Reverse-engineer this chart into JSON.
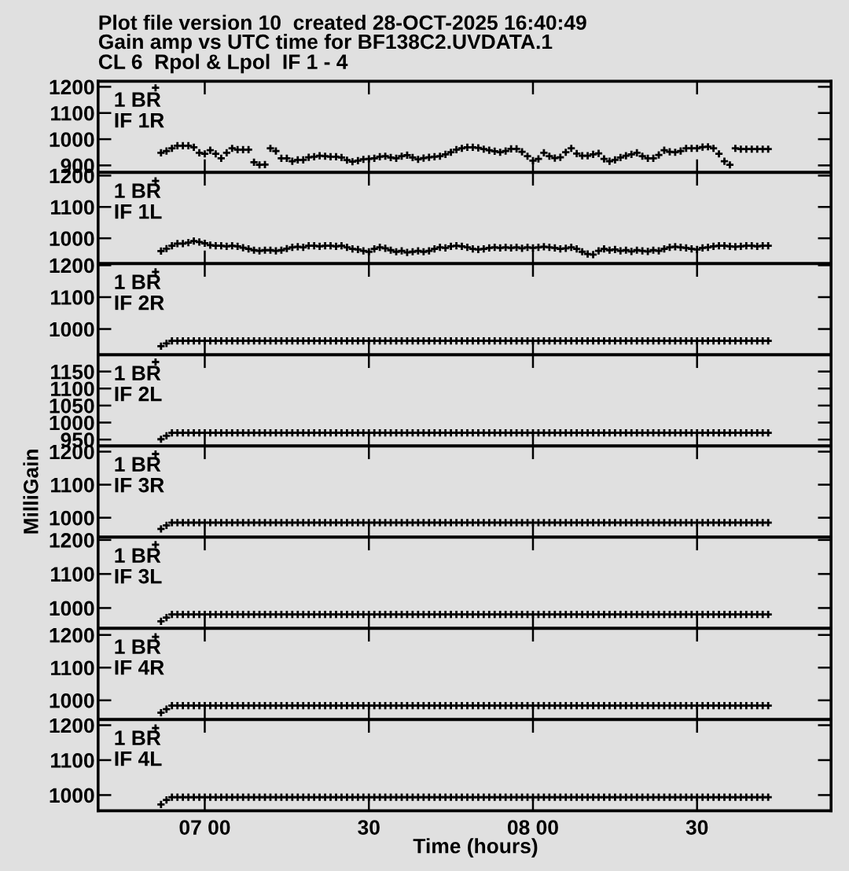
{
  "chart_data": [
    {
      "type": "scatter",
      "title": "Plot file version 10  created 28-OCT-2025 16:40:49",
      "subtitle": "Gain amp vs UTC time for BF138C2.UVDATA.1\nCL 6  Rpol & Lpol  IF 1 - 4",
      "color": "#000000",
      "marker": "cross",
      "tick_labels": "y",
      "annotations": [
        "1 BR",
        "IF 1R"
      ],
      "ylim": [
        873,
        1221
      ],
      "yticks": [
        900,
        1000,
        1100,
        1200
      ],
      "categories": [
        null,
        null,
        null,
        null,
        null,
        null,
        null,
        null,
        null,
        null,
        null,
        null,
        null,
        null,
        null,
        null,
        null,
        null,
        null,
        null,
        null,
        null,
        null,
        null,
        null,
        null,
        null,
        null,
        null,
        null,
        null,
        null,
        null,
        null,
        null,
        null,
        null,
        null,
        null,
        null,
        null,
        null,
        null,
        null,
        null,
        null,
        null,
        null,
        null,
        null,
        null,
        null,
        null,
        null,
        null,
        null,
        null,
        null,
        null,
        null,
        null,
        null,
        null,
        null,
        null,
        null,
        null,
        null,
        null,
        null,
        null,
        null,
        null,
        null,
        null,
        null,
        null,
        null,
        null,
        null,
        null,
        null,
        null,
        null,
        null,
        null,
        null,
        null,
        null,
        null,
        null,
        null,
        null,
        null,
        null,
        null,
        null,
        null,
        null,
        null,
        null,
        null,
        null,
        null,
        null,
        null,
        null,
        null,
        null,
        null,
        null,
        null,
        null,
        null,
        null,
        null,
        null,
        null,
        null,
        null,
        null,
        null,
        null,
        null,
        null,
        null,
        null,
        null,
        null,
        null,
        null,
        null,
        null,
        null
      ],
      "values": [
        null,
        null,
        null,
        null,
        null,
        null,
        null,
        null,
        null,
        null,
        1196,
        948,
        955,
        965,
        975,
        975,
        975,
        969,
        948,
        944,
        958,
        944,
        927,
        948,
        965,
        960,
        960,
        960,
        912,
        902,
        903,
        965,
        955,
        927,
        927,
        916,
        921,
        921,
        931,
        933,
        937,
        935,
        933,
        933,
        930,
        920,
        914,
        918,
        923,
        925,
        927,
        933,
        935,
        930,
        927,
        935,
        939,
        930,
        923,
        928,
        931,
        933,
        935,
        942,
        950,
        960,
        965,
        969,
        969,
        967,
        962,
        958,
        954,
        950,
        955,
        963,
        963,
        952,
        935,
        918,
        925,
        948,
        935,
        928,
        931,
        950,
        965,
        945,
        937,
        937,
        942,
        946,
        925,
        916,
        921,
        930,
        937,
        942,
        948,
        935,
        927,
        927,
        940,
        958,
        952,
        950,
        955,
        965,
        965,
        965,
        970,
        971,
        965,
        944,
        916,
        902,
        965,
        962,
        962,
        962,
        962,
        962,
        962,
        null,
        null,
        null,
        null,
        null,
        null,
        null,
        null,
        null,
        null,
        null
      ]
    },
    {
      "type": "scatter",
      "color": "#000000",
      "marker": "cross",
      "tick_labels": "y",
      "annotations": [
        "1 BR",
        "IF 1L"
      ],
      "ylim": [
        919,
        1210
      ],
      "yticks": [
        1000,
        1100,
        1200
      ],
      "categories": [
        null,
        null,
        null,
        null,
        null,
        null,
        null,
        null,
        null,
        null,
        null,
        null,
        null,
        null,
        null,
        null,
        null,
        null,
        null,
        null,
        null,
        null,
        null,
        null,
        null,
        null,
        null,
        null,
        null,
        null,
        null,
        null,
        null,
        null,
        null,
        null,
        null,
        null,
        null,
        null,
        null,
        null,
        null,
        null,
        null,
        null,
        null,
        null,
        null,
        null,
        null,
        null,
        null,
        null,
        null,
        null,
        null,
        null,
        null,
        null,
        null,
        null,
        null,
        null,
        null,
        null,
        null,
        null,
        null,
        null,
        null,
        null,
        null,
        null,
        null,
        null,
        null,
        null,
        null,
        null,
        null,
        null,
        null,
        null,
        null,
        null,
        null,
        null,
        null,
        null,
        null,
        null,
        null,
        null,
        null,
        null,
        null,
        null,
        null,
        null,
        null,
        null,
        null,
        null,
        null,
        null,
        null,
        null,
        null,
        null,
        null,
        null,
        null,
        null,
        null,
        null,
        null,
        null,
        null,
        null,
        null,
        null,
        null,
        null,
        null,
        null,
        null,
        null,
        null,
        null,
        null,
        null,
        null,
        null
      ],
      "values": [
        null,
        null,
        null,
        null,
        null,
        null,
        null,
        null,
        null,
        null,
        1183,
        959,
        967,
        976,
        983,
        983,
        986,
        991,
        988,
        984,
        978,
        976,
        976,
        974,
        976,
        974,
        970,
        966,
        962,
        960,
        962,
        962,
        960,
        962,
        967,
        971,
        973,
        971,
        976,
        976,
        974,
        976,
        976,
        974,
        976,
        971,
        966,
        964,
        960,
        957,
        966,
        971,
        968,
        962,
        957,
        960,
        955,
        957,
        960,
        957,
        960,
        966,
        971,
        969,
        974,
        976,
        974,
        971,
        966,
        964,
        966,
        969,
        971,
        969,
        971,
        969,
        971,
        968,
        971,
        969,
        971,
        973,
        971,
        969,
        966,
        968,
        971,
        966,
        957,
        950,
        948,
        960,
        966,
        962,
        964,
        960,
        962,
        958,
        962,
        960,
        958,
        962,
        960,
        966,
        971,
        973,
        971,
        969,
        966,
        964,
        969,
        971,
        974,
        976,
        976,
        974,
        973,
        974,
        976,
        976,
        974,
        976,
        976,
        null,
        null,
        null,
        null,
        null,
        null,
        null,
        null,
        null,
        null,
        null
      ]
    },
    {
      "type": "scatter",
      "color": "#000000",
      "marker": "cross",
      "tick_labels": "y",
      "annotations": [
        "1 BR",
        "IF 2R"
      ],
      "ylim": [
        919,
        1205
      ],
      "yticks": [
        1000,
        1100,
        1200
      ],
      "categories": [
        null,
        null,
        null,
        null,
        null,
        null,
        null,
        null,
        null,
        null,
        null,
        null,
        null,
        null,
        null,
        null,
        null,
        null,
        null,
        null,
        null,
        null,
        null,
        null,
        null,
        null,
        null,
        null,
        null,
        null,
        null,
        null,
        null,
        null,
        null,
        null,
        null,
        null,
        null,
        null,
        null,
        null,
        null,
        null,
        null,
        null,
        null,
        null,
        null,
        null,
        null,
        null,
        null,
        null,
        null,
        null,
        null,
        null,
        null,
        null,
        null,
        null,
        null,
        null,
        null,
        null,
        null,
        null,
        null,
        null,
        null,
        null,
        null,
        null,
        null,
        null,
        null,
        null,
        null,
        null,
        null,
        null,
        null,
        null,
        null,
        null,
        null,
        null,
        null,
        null,
        null,
        null,
        null,
        null,
        null,
        null,
        null,
        null,
        null,
        null,
        null,
        null,
        null,
        null,
        null,
        null,
        null,
        null,
        null,
        null,
        null,
        null,
        null,
        null,
        null,
        null,
        null,
        null,
        null,
        null,
        null,
        null,
        null,
        null,
        null,
        null,
        null,
        null,
        null,
        null,
        null,
        null,
        null,
        null
      ],
      "values": [
        null,
        null,
        null,
        null,
        null,
        null,
        null,
        null,
        null,
        null,
        1179,
        946,
        955,
        963,
        963,
        963,
        963,
        963,
        963,
        963,
        963,
        963,
        963,
        963,
        963,
        963,
        963,
        963,
        963,
        963,
        963,
        963,
        963,
        963,
        963,
        963,
        963,
        963,
        963,
        963,
        963,
        963,
        963,
        963,
        963,
        963,
        963,
        963,
        963,
        963,
        963,
        963,
        963,
        963,
        963,
        963,
        963,
        963,
        963,
        963,
        963,
        963,
        963,
        963,
        963,
        963,
        963,
        963,
        963,
        963,
        963,
        963,
        963,
        963,
        963,
        963,
        963,
        963,
        963,
        963,
        963,
        963,
        963,
        963,
        963,
        963,
        963,
        963,
        963,
        963,
        963,
        963,
        963,
        963,
        963,
        963,
        963,
        963,
        963,
        963,
        963,
        963,
        963,
        963,
        963,
        963,
        963,
        963,
        963,
        963,
        963,
        963,
        963,
        963,
        963,
        963,
        963,
        963,
        963,
        963,
        963,
        963,
        963,
        null,
        null,
        null,
        null,
        null,
        null,
        null,
        null,
        null,
        null,
        null
      ]
    },
    {
      "type": "scatter",
      "color": "#000000",
      "marker": "cross",
      "tick_labels": "y",
      "annotations": [
        "1 BR",
        "IF 2L"
      ],
      "ylim": [
        931,
        1199
      ],
      "yticks": [
        950,
        1000,
        1050,
        1100,
        1150
      ],
      "categories": [
        null,
        null,
        null,
        null,
        null,
        null,
        null,
        null,
        null,
        null,
        null,
        null,
        null,
        null,
        null,
        null,
        null,
        null,
        null,
        null,
        null,
        null,
        null,
        null,
        null,
        null,
        null,
        null,
        null,
        null,
        null,
        null,
        null,
        null,
        null,
        null,
        null,
        null,
        null,
        null,
        null,
        null,
        null,
        null,
        null,
        null,
        null,
        null,
        null,
        null,
        null,
        null,
        null,
        null,
        null,
        null,
        null,
        null,
        null,
        null,
        null,
        null,
        null,
        null,
        null,
        null,
        null,
        null,
        null,
        null,
        null,
        null,
        null,
        null,
        null,
        null,
        null,
        null,
        null,
        null,
        null,
        null,
        null,
        null,
        null,
        null,
        null,
        null,
        null,
        null,
        null,
        null,
        null,
        null,
        null,
        null,
        null,
        null,
        null,
        null,
        null,
        null,
        null,
        null,
        null,
        null,
        null,
        null,
        null,
        null,
        null,
        null,
        null,
        null,
        null,
        null,
        null,
        null,
        null,
        null,
        null,
        null,
        null,
        null,
        null,
        null,
        null,
        null,
        null,
        null,
        null,
        null,
        null,
        null
      ],
      "values": [
        null,
        null,
        null,
        null,
        null,
        null,
        null,
        null,
        null,
        null,
        1178,
        951,
        961,
        970,
        970,
        970,
        970,
        970,
        970,
        970,
        970,
        970,
        970,
        970,
        970,
        970,
        970,
        970,
        970,
        970,
        970,
        970,
        970,
        970,
        970,
        970,
        970,
        970,
        970,
        970,
        970,
        970,
        970,
        970,
        970,
        970,
        970,
        970,
        970,
        970,
        970,
        970,
        970,
        970,
        970,
        970,
        970,
        970,
        970,
        970,
        970,
        970,
        970,
        970,
        970,
        970,
        970,
        970,
        970,
        970,
        970,
        970,
        970,
        970,
        970,
        970,
        970,
        970,
        970,
        970,
        970,
        970,
        970,
        970,
        970,
        970,
        970,
        970,
        970,
        970,
        970,
        970,
        970,
        970,
        970,
        970,
        970,
        970,
        970,
        970,
        970,
        970,
        970,
        970,
        970,
        970,
        970,
        970,
        970,
        970,
        970,
        970,
        970,
        970,
        970,
        970,
        970,
        970,
        970,
        970,
        970,
        970,
        970,
        null,
        null,
        null,
        null,
        null,
        null,
        null,
        null,
        null,
        null,
        null
      ]
    },
    {
      "type": "scatter",
      "ylabel": "MilliGain",
      "color": "#000000",
      "marker": "cross",
      "tick_labels": "y",
      "annotations": [
        "1 BR",
        "IF 3R"
      ],
      "ylim": [
        941,
        1217
      ],
      "yticks": [
        1000,
        1100,
        1200
      ],
      "categories": [
        null,
        null,
        null,
        null,
        null,
        null,
        null,
        null,
        null,
        null,
        null,
        null,
        null,
        null,
        null,
        null,
        null,
        null,
        null,
        null,
        null,
        null,
        null,
        null,
        null,
        null,
        null,
        null,
        null,
        null,
        null,
        null,
        null,
        null,
        null,
        null,
        null,
        null,
        null,
        null,
        null,
        null,
        null,
        null,
        null,
        null,
        null,
        null,
        null,
        null,
        null,
        null,
        null,
        null,
        null,
        null,
        null,
        null,
        null,
        null,
        null,
        null,
        null,
        null,
        null,
        null,
        null,
        null,
        null,
        null,
        null,
        null,
        null,
        null,
        null,
        null,
        null,
        null,
        null,
        null,
        null,
        null,
        null,
        null,
        null,
        null,
        null,
        null,
        null,
        null,
        null,
        null,
        null,
        null,
        null,
        null,
        null,
        null,
        null,
        null,
        null,
        null,
        null,
        null,
        null,
        null,
        null,
        null,
        null,
        null,
        null,
        null,
        null,
        null,
        null,
        null,
        null,
        null,
        null,
        null,
        null,
        null,
        null,
        null,
        null,
        null,
        null,
        null,
        null,
        null,
        null,
        null,
        null,
        null
      ],
      "values": [
        null,
        null,
        null,
        null,
        null,
        null,
        null,
        null,
        null,
        null,
        1193,
        966,
        977,
        985,
        985,
        985,
        985,
        985,
        985,
        985,
        985,
        985,
        985,
        985,
        985,
        985,
        985,
        985,
        985,
        985,
        985,
        985,
        985,
        985,
        985,
        985,
        985,
        985,
        985,
        985,
        985,
        985,
        985,
        985,
        985,
        985,
        985,
        985,
        985,
        985,
        985,
        985,
        985,
        985,
        985,
        985,
        985,
        985,
        985,
        985,
        985,
        985,
        985,
        985,
        985,
        985,
        985,
        985,
        985,
        985,
        985,
        985,
        985,
        985,
        985,
        985,
        985,
        985,
        985,
        985,
        985,
        985,
        985,
        985,
        985,
        985,
        985,
        985,
        985,
        985,
        985,
        985,
        985,
        985,
        985,
        985,
        985,
        985,
        985,
        985,
        985,
        985,
        985,
        985,
        985,
        985,
        985,
        985,
        985,
        985,
        985,
        985,
        985,
        985,
        985,
        985,
        985,
        985,
        985,
        985,
        985,
        985,
        985,
        null,
        null,
        null,
        null,
        null,
        null,
        null,
        null,
        null,
        null,
        null
      ]
    },
    {
      "type": "scatter",
      "color": "#000000",
      "marker": "cross",
      "tick_labels": "y",
      "annotations": [
        "1 BR",
        "IF 3L"
      ],
      "ylim": [
        940,
        1208
      ],
      "yticks": [
        1000,
        1100,
        1200
      ],
      "categories": [
        null,
        null,
        null,
        null,
        null,
        null,
        null,
        null,
        null,
        null,
        null,
        null,
        null,
        null,
        null,
        null,
        null,
        null,
        null,
        null,
        null,
        null,
        null,
        null,
        null,
        null,
        null,
        null,
        null,
        null,
        null,
        null,
        null,
        null,
        null,
        null,
        null,
        null,
        null,
        null,
        null,
        null,
        null,
        null,
        null,
        null,
        null,
        null,
        null,
        null,
        null,
        null,
        null,
        null,
        null,
        null,
        null,
        null,
        null,
        null,
        null,
        null,
        null,
        null,
        null,
        null,
        null,
        null,
        null,
        null,
        null,
        null,
        null,
        null,
        null,
        null,
        null,
        null,
        null,
        null,
        null,
        null,
        null,
        null,
        null,
        null,
        null,
        null,
        null,
        null,
        null,
        null,
        null,
        null,
        null,
        null,
        null,
        null,
        null,
        null,
        null,
        null,
        null,
        null,
        null,
        null,
        null,
        null,
        null,
        null,
        null,
        null,
        null,
        null,
        null,
        null,
        null,
        null,
        null,
        null,
        null,
        null,
        null,
        null,
        null,
        null,
        null,
        null,
        null,
        null,
        null,
        null,
        null,
        null
      ],
      "values": [
        null,
        null,
        null,
        null,
        null,
        null,
        null,
        null,
        null,
        null,
        1186,
        961,
        972,
        981,
        981,
        981,
        981,
        981,
        981,
        981,
        981,
        981,
        981,
        981,
        981,
        981,
        981,
        981,
        981,
        981,
        981,
        981,
        981,
        981,
        981,
        981,
        981,
        981,
        981,
        981,
        981,
        981,
        981,
        981,
        981,
        981,
        981,
        981,
        981,
        981,
        981,
        981,
        981,
        981,
        981,
        981,
        981,
        981,
        981,
        981,
        981,
        981,
        981,
        981,
        981,
        981,
        981,
        981,
        981,
        981,
        981,
        981,
        981,
        981,
        981,
        981,
        981,
        981,
        981,
        981,
        981,
        981,
        981,
        981,
        981,
        981,
        981,
        981,
        981,
        981,
        981,
        981,
        981,
        981,
        981,
        981,
        981,
        981,
        981,
        981,
        981,
        981,
        981,
        981,
        981,
        981,
        981,
        981,
        981,
        981,
        981,
        981,
        981,
        981,
        981,
        981,
        981,
        981,
        981,
        981,
        981,
        981,
        981,
        null,
        null,
        null,
        null,
        null,
        null,
        null,
        null,
        null,
        null,
        null
      ]
    },
    {
      "type": "scatter",
      "color": "#000000",
      "marker": "cross",
      "tick_labels": "y",
      "annotations": [
        "1 BR",
        "IF 4R"
      ],
      "ylim": [
        941,
        1220
      ],
      "yticks": [
        1000,
        1100,
        1200
      ],
      "categories": [
        null,
        null,
        null,
        null,
        null,
        null,
        null,
        null,
        null,
        null,
        null,
        null,
        null,
        null,
        null,
        null,
        null,
        null,
        null,
        null,
        null,
        null,
        null,
        null,
        null,
        null,
        null,
        null,
        null,
        null,
        null,
        null,
        null,
        null,
        null,
        null,
        null,
        null,
        null,
        null,
        null,
        null,
        null,
        null,
        null,
        null,
        null,
        null,
        null,
        null,
        null,
        null,
        null,
        null,
        null,
        null,
        null,
        null,
        null,
        null,
        null,
        null,
        null,
        null,
        null,
        null,
        null,
        null,
        null,
        null,
        null,
        null,
        null,
        null,
        null,
        null,
        null,
        null,
        null,
        null,
        null,
        null,
        null,
        null,
        null,
        null,
        null,
        null,
        null,
        null,
        null,
        null,
        null,
        null,
        null,
        null,
        null,
        null,
        null,
        null,
        null,
        null,
        null,
        null,
        null,
        null,
        null,
        null,
        null,
        null,
        null,
        null,
        null,
        null,
        null,
        null,
        null,
        null,
        null,
        null,
        null,
        null,
        null,
        null,
        null,
        null,
        null,
        null,
        null,
        null,
        null,
        null,
        null,
        null
      ],
      "values": [
        null,
        null,
        null,
        null,
        null,
        null,
        null,
        null,
        null,
        null,
        1194,
        962,
        973,
        984,
        984,
        984,
        984,
        984,
        984,
        984,
        984,
        984,
        984,
        984,
        984,
        984,
        984,
        984,
        984,
        984,
        984,
        984,
        984,
        984,
        984,
        984,
        984,
        984,
        984,
        984,
        984,
        984,
        984,
        984,
        984,
        984,
        984,
        984,
        984,
        984,
        984,
        984,
        984,
        984,
        984,
        984,
        984,
        984,
        984,
        984,
        984,
        984,
        984,
        984,
        984,
        984,
        984,
        984,
        984,
        984,
        984,
        984,
        984,
        984,
        984,
        984,
        984,
        984,
        984,
        984,
        984,
        984,
        984,
        984,
        984,
        984,
        984,
        984,
        984,
        984,
        984,
        984,
        984,
        984,
        984,
        984,
        984,
        984,
        984,
        984,
        984,
        984,
        984,
        984,
        984,
        984,
        984,
        984,
        984,
        984,
        984,
        984,
        984,
        984,
        984,
        984,
        984,
        984,
        984,
        984,
        984,
        984,
        984,
        null,
        null,
        null,
        null,
        null,
        null,
        null,
        null,
        null,
        null,
        null
      ]
    },
    {
      "type": "scatter",
      "xlabel": "Time (hours)",
      "color": "#000000",
      "marker": "cross",
      "annotations": [
        "1 BR",
        "IF 4L"
      ],
      "ylim": [
        955,
        1216
      ],
      "yticks": [
        1000,
        1100,
        1200
      ],
      "categories": [
        null,
        null,
        null,
        null,
        null,
        null,
        null,
        null,
        null,
        null,
        null,
        null,
        null,
        null,
        null,
        null,
        null,
        null,
        null,
        "07 00",
        null,
        null,
        null,
        null,
        null,
        null,
        null,
        null,
        null,
        null,
        null,
        null,
        null,
        null,
        null,
        null,
        null,
        null,
        null,
        null,
        null,
        null,
        null,
        null,
        null,
        null,
        null,
        null,
        null,
        "30",
        null,
        null,
        null,
        null,
        null,
        null,
        null,
        null,
        null,
        null,
        null,
        null,
        null,
        null,
        null,
        null,
        null,
        null,
        null,
        null,
        null,
        null,
        null,
        null,
        null,
        null,
        null,
        null,
        null,
        "08 00",
        null,
        null,
        null,
        null,
        null,
        null,
        null,
        null,
        null,
        null,
        null,
        null,
        null,
        null,
        null,
        null,
        null,
        null,
        null,
        null,
        null,
        null,
        null,
        null,
        null,
        null,
        null,
        null,
        null,
        "30",
        null,
        null,
        null,
        null,
        null,
        null,
        null,
        null,
        null,
        null,
        null,
        null,
        null,
        null,
        null,
        null,
        null,
        null,
        null,
        null,
        null,
        null,
        null,
        null
      ],
      "values": [
        null,
        null,
        null,
        null,
        null,
        null,
        null,
        null,
        null,
        null,
        1192,
        973,
        986,
        994,
        994,
        994,
        994,
        994,
        994,
        994,
        994,
        994,
        994,
        994,
        994,
        994,
        994,
        994,
        994,
        994,
        994,
        994,
        994,
        994,
        994,
        994,
        994,
        994,
        994,
        994,
        994,
        994,
        994,
        994,
        994,
        994,
        994,
        994,
        994,
        994,
        994,
        994,
        994,
        994,
        994,
        994,
        994,
        994,
        994,
        994,
        994,
        994,
        994,
        994,
        994,
        994,
        994,
        994,
        994,
        994,
        994,
        994,
        994,
        994,
        994,
        994,
        994,
        994,
        994,
        994,
        994,
        994,
        994,
        994,
        994,
        994,
        994,
        994,
        994,
        994,
        994,
        994,
        994,
        994,
        994,
        994,
        994,
        994,
        994,
        994,
        994,
        994,
        994,
        994,
        994,
        994,
        994,
        994,
        994,
        994,
        994,
        994,
        994,
        994,
        994,
        994,
        994,
        994,
        994,
        994,
        994,
        994,
        994,
        null,
        null,
        null,
        null,
        null,
        null,
        null,
        null,
        null,
        null,
        null
      ]
    }
  ]
}
